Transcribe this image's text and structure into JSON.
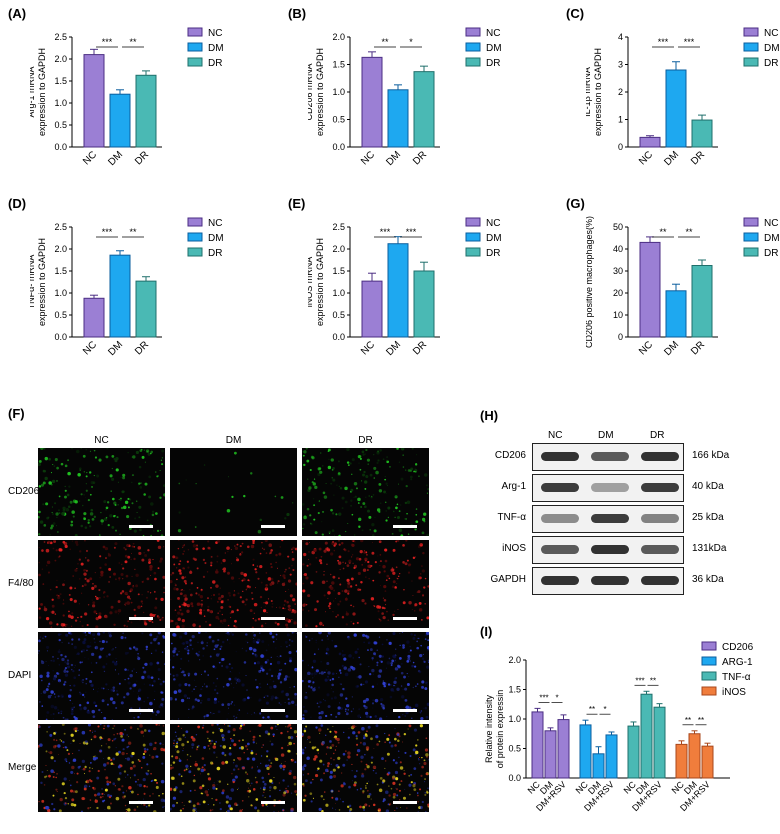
{
  "panels": {
    "A": {
      "label": "(A)",
      "ylabel": [
        "Arg-1 mRNA",
        "expression to GAPDH"
      ],
      "ylim": [
        0,
        2.5
      ],
      "ticks": [
        "0.0",
        "0.5",
        "1.0",
        "1.5",
        "2.0",
        "2.5"
      ],
      "categories": [
        "NC",
        "DM",
        "DR"
      ],
      "values": [
        2.1,
        1.2,
        1.63
      ],
      "errors": [
        0.12,
        0.1,
        0.1
      ],
      "sig": [
        "***",
        "**"
      ],
      "legend": [
        "NC",
        "DM",
        "DR"
      ]
    },
    "B": {
      "label": "(B)",
      "ylabel": [
        "CD206 mRNA",
        "expression to GAPDH"
      ],
      "ylim": [
        0,
        2.0
      ],
      "ticks": [
        "0.0",
        "0.5",
        "1.0",
        "1.5",
        "2.0"
      ],
      "categories": [
        "NC",
        "DM",
        "DR"
      ],
      "values": [
        1.63,
        1.04,
        1.37
      ],
      "errors": [
        0.1,
        0.09,
        0.1
      ],
      "sig": [
        "**",
        "*"
      ],
      "legend": [
        "NC",
        "DM",
        "DR"
      ]
    },
    "C": {
      "label": "(C)",
      "ylabel": [
        "IL-1β mRNA",
        "expression to GAPDH"
      ],
      "ylim": [
        0,
        4
      ],
      "ticks": [
        "0",
        "1",
        "2",
        "3",
        "4"
      ],
      "categories": [
        "NC",
        "DM",
        "DR"
      ],
      "values": [
        0.35,
        2.8,
        0.98
      ],
      "errors": [
        0.06,
        0.3,
        0.18
      ],
      "sig": [
        "***",
        "***"
      ],
      "legend": [
        "NC",
        "DM",
        "DR"
      ]
    },
    "D": {
      "label": "(D)",
      "ylabel": [
        "TNFα- mRNA",
        "expression to GAPDH"
      ],
      "ylim": [
        0,
        2.5
      ],
      "ticks": [
        "0.0",
        "0.5",
        "1.0",
        "1.5",
        "2.0",
        "2.5"
      ],
      "categories": [
        "NC",
        "DM",
        "DR"
      ],
      "values": [
        0.88,
        1.86,
        1.27
      ],
      "errors": [
        0.07,
        0.1,
        0.1
      ],
      "sig": [
        "***",
        "**"
      ],
      "legend": [
        "NC",
        "DM",
        "DR"
      ]
    },
    "E": {
      "label": "(E)",
      "ylabel": [
        "iNOS mRNA",
        "expression to GAPDH"
      ],
      "ylim": [
        0,
        2.5
      ],
      "ticks": [
        "0.0",
        "0.5",
        "1.0",
        "1.5",
        "2.0",
        "2.5"
      ],
      "categories": [
        "NC",
        "DM",
        "DR"
      ],
      "values": [
        1.27,
        2.12,
        1.5
      ],
      "errors": [
        0.18,
        0.16,
        0.2
      ],
      "sig": [
        "***",
        "***"
      ],
      "legend": [
        "NC",
        "DM",
        "DR"
      ]
    },
    "G": {
      "label": "(G)",
      "ylabel": [
        "CD206 positive macrophages(%)"
      ],
      "ylim": [
        0,
        50
      ],
      "ticks": [
        "0",
        "10",
        "20",
        "30",
        "40",
        "50"
      ],
      "categories": [
        "NC",
        "DM",
        "DR"
      ],
      "values": [
        43,
        21,
        32.5
      ],
      "errors": [
        2.5,
        3,
        2.5
      ],
      "sig": [
        "**",
        "**"
      ],
      "legend": [
        "NC",
        "DM",
        "DR"
      ]
    }
  },
  "colors": {
    "NC": "#9b7fd4",
    "DM": "#1ea8f0",
    "DR": "#4ab9b4",
    "ORANGE": "#f07d3c"
  },
  "F": {
    "label": "(F)",
    "columns": [
      "NC",
      "DM",
      "DR"
    ],
    "rows": [
      "CD206",
      "F4/80",
      "DAPI",
      "Merge"
    ]
  },
  "H": {
    "label": "(H)",
    "columns": [
      "NC",
      "DM",
      "DR"
    ],
    "blots": [
      {
        "name": "CD206",
        "kda": "166 kDa",
        "intensity": [
          0.95,
          0.75,
          0.95
        ]
      },
      {
        "name": "Arg-1",
        "kda": "40 kDa",
        "intensity": [
          0.9,
          0.4,
          0.9
        ]
      },
      {
        "name": "TNF-α",
        "kda": "25 kDa",
        "intensity": [
          0.5,
          0.9,
          0.55
        ]
      },
      {
        "name": "iNOS",
        "kda": "131kDa",
        "intensity": [
          0.75,
          0.95,
          0.75
        ]
      },
      {
        "name": "GAPDH",
        "kda": "36 kDa",
        "intensity": [
          0.95,
          0.95,
          0.95
        ]
      }
    ]
  },
  "chart_data": [
    {
      "type": "bar",
      "panel": "I",
      "title": "",
      "ylabel": "Relative intensity of protein expressin",
      "ylim": [
        0,
        2.0
      ],
      "ticks": [
        "0.0",
        "0.5",
        "1.0",
        "1.5",
        "2.0"
      ],
      "categories": [
        "NC",
        "DM",
        "DM+RSV"
      ],
      "series": [
        {
          "name": "CD206",
          "values": [
            1.12,
            0.8,
            0.99
          ],
          "errors": [
            0.06,
            0.05,
            0.08
          ],
          "sig": [
            "***",
            "*"
          ]
        },
        {
          "name": "ARG-1",
          "values": [
            0.9,
            0.41,
            0.73
          ],
          "errors": [
            0.08,
            0.12,
            0.05
          ],
          "sig": [
            "**",
            "*"
          ]
        },
        {
          "name": "TNF-α",
          "values": [
            0.88,
            1.42,
            1.2
          ],
          "errors": [
            0.07,
            0.05,
            0.06
          ],
          "sig": [
            "***",
            "**"
          ]
        },
        {
          "name": "iNOS",
          "values": [
            0.57,
            0.75,
            0.54
          ],
          "errors": [
            0.06,
            0.05,
            0.05
          ],
          "sig": [
            "**",
            "**"
          ]
        }
      ],
      "label": "(I)"
    }
  ]
}
